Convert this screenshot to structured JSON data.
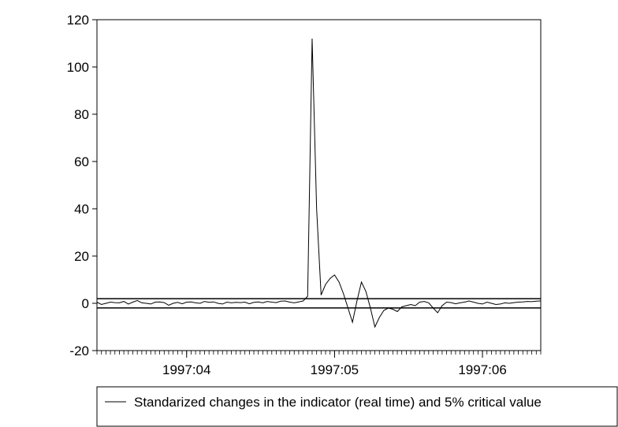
{
  "chart_data": {
    "type": "line",
    "title": "",
    "xlabel": "",
    "ylabel": "",
    "ylim": [
      -20,
      120
    ],
    "yticks": [
      -20,
      0,
      20,
      40,
      60,
      80,
      100,
      120
    ],
    "ytick_labels": [
      "-20",
      "0",
      "20",
      "40",
      "60",
      "80",
      "100",
      "120"
    ],
    "xlim": [
      0,
      99
    ],
    "xtick_labels": [
      {
        "label": "1997:04",
        "x": 20
      },
      {
        "label": "1997:05",
        "x": 53
      },
      {
        "label": "1997:06",
        "x": 86
      }
    ],
    "x_minor_ticks": 99,
    "grid": false,
    "legend_position": "bottom",
    "series": [
      {
        "name": "Standarized changes in the indicator (real time) and 5% critical value",
        "color": "#000000",
        "x": [
          0,
          1,
          2,
          3,
          4,
          5,
          6,
          7,
          8,
          9,
          10,
          11,
          12,
          13,
          14,
          15,
          16,
          17,
          18,
          19,
          20,
          21,
          22,
          23,
          24,
          25,
          26,
          27,
          28,
          29,
          30,
          31,
          32,
          33,
          34,
          35,
          36,
          37,
          38,
          39,
          40,
          41,
          42,
          43,
          44,
          45,
          46,
          47,
          48,
          49,
          50,
          51,
          52,
          53,
          54,
          55,
          56,
          57,
          58,
          59,
          60,
          61,
          62,
          63,
          64,
          65,
          66,
          67,
          68,
          69,
          70,
          71,
          72,
          73,
          74,
          75,
          76,
          77,
          78,
          79,
          80,
          81,
          82,
          83,
          84,
          85,
          86,
          87,
          88,
          89,
          90,
          91,
          92,
          93,
          94,
          95,
          96,
          97,
          98,
          99
        ],
        "values": [
          0.5,
          -0.5,
          0,
          0.5,
          0.3,
          0.2,
          0.8,
          -0.3,
          0.5,
          1.2,
          0.2,
          0,
          -0.3,
          0.5,
          0.6,
          0.3,
          -0.8,
          0,
          0.4,
          -0.2,
          0.5,
          0.6,
          0.2,
          0,
          0.8,
          0.4,
          0.6,
          0,
          -0.3,
          0.5,
          0.2,
          0.4,
          0.3,
          0.5,
          -0.2,
          0.4,
          0.6,
          0.2,
          0.8,
          0.5,
          0.3,
          0.9,
          1.0,
          0.5,
          0.2,
          0.6,
          1.0,
          3.0,
          112,
          40,
          3.5,
          8.0,
          10.5,
          12.0,
          9.0,
          4.0,
          -2.0,
          -8.0,
          1.0,
          9.0,
          5.0,
          -2.0,
          -10.0,
          -6.0,
          -3.0,
          -2.0,
          -2.5,
          -3.5,
          -1.5,
          -1.0,
          -0.5,
          -1.0,
          0.5,
          0.8,
          0.2,
          -2.0,
          -4.0,
          -1.0,
          0.5,
          0.3,
          -0.2,
          0.2,
          0.5,
          1.0,
          0.5,
          0,
          -0.3,
          0.5,
          0,
          -0.5,
          -0.3,
          0.2,
          0,
          0.3,
          0.5,
          0.6,
          0.8,
          0.7,
          0.9,
          1.0
        ]
      }
    ],
    "critical_values": [
      1.96,
      -1.96
    ]
  }
}
